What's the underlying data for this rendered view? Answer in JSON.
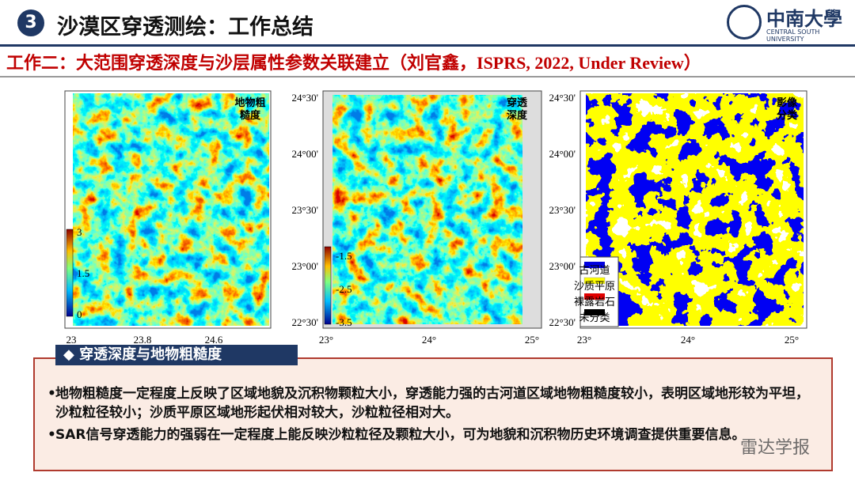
{
  "header": {
    "number": "3",
    "title": "沙漠区穿透测绘：工作总结",
    "logo_name": "中南大學",
    "logo_sub": "CENTRAL SOUTH UNIVERSITY"
  },
  "subtitle": "工作二：大范围穿透深度与沙层属性参数关联建立（刘官鑫，ISPRS, 2022, Under Review）",
  "maps": [
    {
      "label": "地物粗糙度",
      "colorbar": [
        "3",
        "1.5",
        "0"
      ],
      "xticks": [
        "23",
        "23.8",
        "24.6"
      ]
    },
    {
      "label": "穿透深度",
      "yticks": [
        "24°30'",
        "24°00'",
        "23°30'",
        "23°00'",
        "22°30'"
      ],
      "colorbar": [
        "-1.5",
        "-2.5",
        "-3.5"
      ],
      "xticks": [
        "23°",
        "24°",
        "25°"
      ]
    },
    {
      "label": "影像分类",
      "yticks": [
        "24°30'",
        "24°00'",
        "23°30'",
        "23°00'",
        "22°30'"
      ],
      "legend": [
        "古河道",
        "沙质平原",
        "裸露岩石",
        "未分类"
      ],
      "xticks": [
        "23°",
        "24°",
        "25°"
      ]
    }
  ],
  "section": {
    "title": "◆ 穿透深度与地物粗糙度",
    "bullets": [
      "地物粗糙度一定程度上反映了区域地貌及沉积物颗粒大小，穿透能力强的古河道区域地物粗糙度较小，表明区域地形较为平坦，沙粒粒径较小；沙质平原区域地形起伏相对较大，沙粒粒径相对大。",
      "SAR信号穿透能力的强弱在一定程度上能反映沙粒粒径及颗粒大小，可为地貌和沉积物历史环境调查提供重要信息。"
    ]
  },
  "watermark": "雷达学报"
}
